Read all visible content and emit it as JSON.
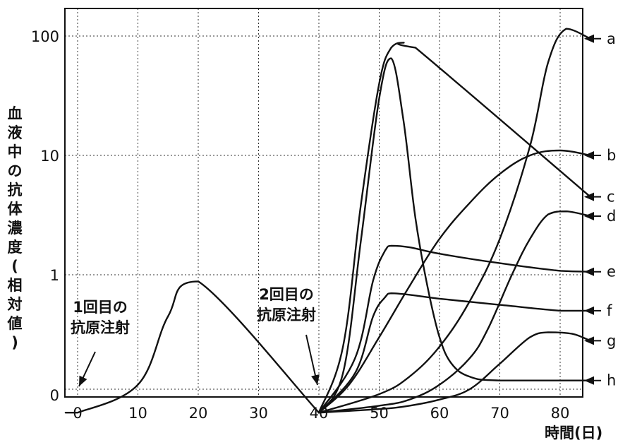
{
  "chart_data": {
    "type": "line",
    "ylabel": "血液中の抗体濃度(相対値)",
    "xlabel": "時間(日)",
    "x_ticks": [
      "0",
      "10",
      "20",
      "30",
      "40",
      "50",
      "60",
      "70",
      "80"
    ],
    "y_ticks": [
      "0",
      "1",
      "10",
      "100"
    ],
    "xlim": [
      -2,
      85
    ],
    "y_scale": "log",
    "grid": true,
    "annotations": [
      {
        "lines": [
          "1回目の",
          "抗原注射"
        ],
        "x": 0
      },
      {
        "lines": [
          "2回目の",
          "抗原注射"
        ],
        "x": 40
      }
    ],
    "first_response": {
      "x": [
        -2,
        0,
        10,
        15,
        20,
        40
      ],
      "y": [
        0.07,
        0.07,
        0.12,
        0.45,
        0.88,
        0.07
      ]
    },
    "series": [
      {
        "name": "a",
        "x": [
          40,
          44,
          47,
          50,
          52,
          54,
          56,
          85
        ],
        "y": [
          0.07,
          0.25,
          4,
          40,
          80,
          88,
          80,
          4.5
        ]
      },
      {
        "name": "b",
        "x": [
          40,
          45,
          50,
          55,
          60,
          65,
          70,
          75,
          80,
          85
        ],
        "y": [
          0.07,
          0.12,
          0.3,
          0.8,
          2,
          4,
          7,
          10,
          11,
          10
        ]
      },
      {
        "name": "c",
        "x": [
          40,
          44,
          47,
          50,
          52,
          54,
          56,
          58,
          60,
          62,
          65,
          70,
          85
        ],
        "y": [
          0.07,
          0.15,
          2,
          30,
          65,
          20,
          3,
          0.8,
          0.3,
          0.18,
          0.14,
          0.13,
          0.13
        ]
      },
      {
        "name": "d",
        "x": [
          40,
          50,
          55,
          60,
          65,
          70,
          75,
          78,
          81,
          85
        ],
        "y": [
          0.07,
          0.1,
          0.14,
          0.25,
          0.6,
          2,
          12,
          60,
          115,
          95
        ]
      },
      {
        "name": "e",
        "x": [
          40,
          46,
          49,
          51,
          52,
          55,
          60,
          70,
          80,
          85
        ],
        "y": [
          0.07,
          0.2,
          0.9,
          1.6,
          1.75,
          1.7,
          1.5,
          1.25,
          1.08,
          1.06
        ]
      },
      {
        "name": "f",
        "x": [
          40,
          46,
          49,
          51,
          52,
          55,
          60,
          70,
          80,
          85
        ],
        "y": [
          0.07,
          0.15,
          0.45,
          0.65,
          0.7,
          0.68,
          0.63,
          0.56,
          0.5,
          0.5
        ]
      },
      {
        "name": "g",
        "x": [
          40,
          50,
          55,
          60,
          65,
          68,
          72,
          75,
          78,
          81,
          85
        ],
        "y": [
          0.07,
          0.08,
          0.09,
          0.12,
          0.2,
          0.35,
          1,
          2,
          3.2,
          3.4,
          3.1
        ]
      },
      {
        "name": "h",
        "x": [
          40,
          50,
          55,
          60,
          65,
          70,
          75,
          78,
          82,
          85
        ],
        "y": [
          0.07,
          0.075,
          0.08,
          0.09,
          0.11,
          0.18,
          0.3,
          0.33,
          0.32,
          0.28
        ]
      }
    ],
    "right_labels": [
      {
        "label": "a",
        "y": 95
      },
      {
        "label": "b",
        "y": 10
      },
      {
        "label": "c",
        "y": 4.5
      },
      {
        "label": "d",
        "y": 3.1
      },
      {
        "label": "e",
        "y": 1.06
      },
      {
        "label": "f",
        "y": 0.5
      },
      {
        "label": "g",
        "y": 0.28
      },
      {
        "label": "h",
        "y": 0.13
      }
    ]
  }
}
